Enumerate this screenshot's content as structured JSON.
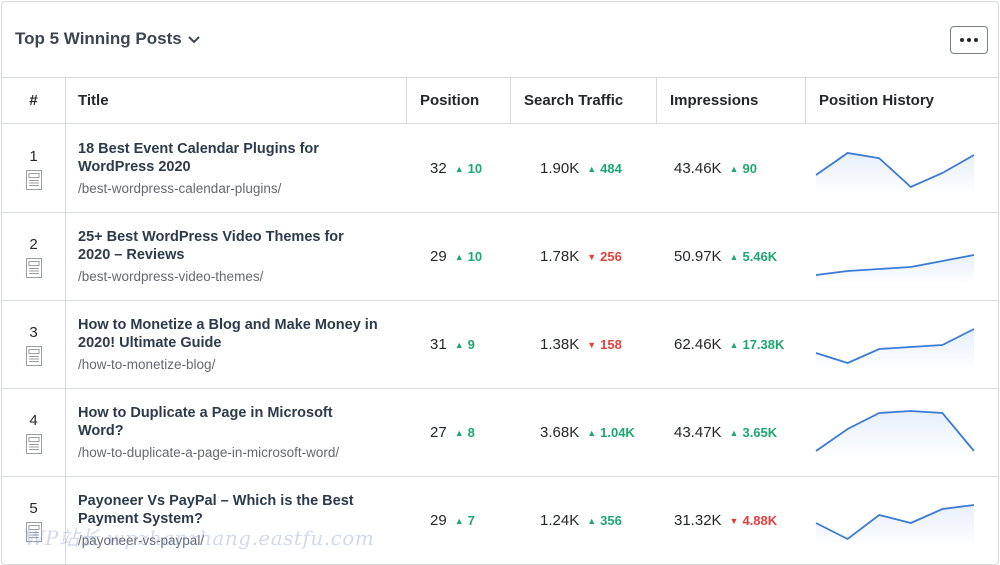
{
  "widget": {
    "title": "Top 5 Winning Posts",
    "more_label": "•••"
  },
  "columns": [
    "#",
    "Title",
    "Position",
    "Search Traffic",
    "Impressions",
    "Position History"
  ],
  "colors": {
    "up": "#1ea672",
    "down": "#e2403d",
    "sparkline": "#3a7bd5"
  },
  "rows": [
    {
      "rank": "1",
      "title": "18 Best Event Calendar Plugins for WordPress 2020",
      "url": "/best-wordpress-calendar-plugins/",
      "position": "32",
      "position_delta": "10",
      "position_dir": "up",
      "traffic": "1.90K",
      "traffic_delta": "484",
      "traffic_dir": "up",
      "impressions": "43.46K",
      "impressions_delta": "90",
      "impressions_dir": "up",
      "history": [
        0.3,
        0.85,
        0.72,
        0.0,
        0.35,
        0.8
      ]
    },
    {
      "rank": "2",
      "title": "25+ Best WordPress Video Themes for 2020 – Reviews",
      "url": "/best-wordpress-video-themes/",
      "position": "29",
      "position_delta": "10",
      "position_dir": "up",
      "traffic": "1.78K",
      "traffic_delta": "256",
      "traffic_dir": "down",
      "impressions": "50.97K",
      "impressions_delta": "5.46K",
      "impressions_dir": "up",
      "history": [
        0.0,
        0.1,
        0.15,
        0.2,
        0.35,
        0.5
      ]
    },
    {
      "rank": "3",
      "title": "How to Monetize a Blog and Make Money in 2020! Ultimate Guide",
      "url": "/how-to-monetize-blog/",
      "position": "31",
      "position_delta": "9",
      "position_dir": "up",
      "traffic": "1.38K",
      "traffic_delta": "158",
      "traffic_dir": "down",
      "impressions": "62.46K",
      "impressions_delta": "17.38K",
      "impressions_dir": "up",
      "history": [
        0.25,
        0.0,
        0.35,
        0.4,
        0.45,
        0.85
      ]
    },
    {
      "rank": "4",
      "title": "How to Duplicate a Page in Microsoft Word?",
      "url": "/how-to-duplicate-a-page-in-microsoft-word/",
      "position": "27",
      "position_delta": "8",
      "position_dir": "up",
      "traffic": "3.68K",
      "traffic_delta": "1.04K",
      "traffic_dir": "up",
      "impressions": "43.47K",
      "impressions_delta": "3.65K",
      "impressions_dir": "up",
      "history": [
        0.0,
        0.55,
        0.95,
        1.0,
        0.95,
        0.0
      ]
    },
    {
      "rank": "5",
      "title": "Payoneer Vs PayPal – Which is the Best Payment System?",
      "url": "/payoneer-vs-paypal/",
      "position": "29",
      "position_delta": "7",
      "position_dir": "up",
      "traffic": "1.24K",
      "traffic_delta": "356",
      "traffic_dir": "up",
      "impressions": "31.32K",
      "impressions_delta": "4.88K",
      "impressions_dir": "down",
      "history": [
        0.4,
        0.0,
        0.6,
        0.4,
        0.75,
        0.85
      ]
    }
  ]
}
